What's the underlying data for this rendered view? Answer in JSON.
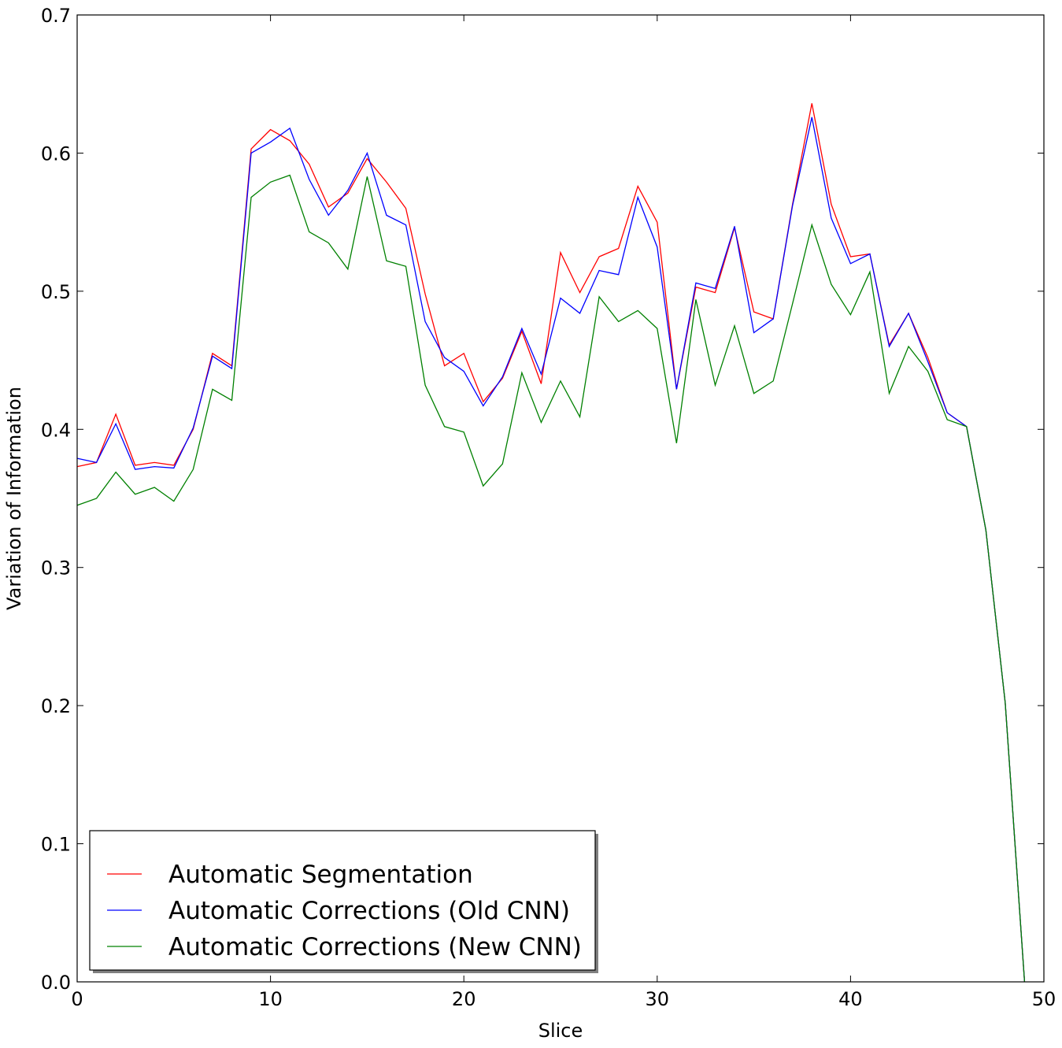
{
  "chart_data": {
    "type": "line",
    "title": "",
    "xlabel": "Slice",
    "ylabel": "Variation of Information",
    "xlim": [
      0,
      50
    ],
    "ylim": [
      0,
      0.7
    ],
    "xticks": [
      0,
      10,
      20,
      30,
      40,
      50
    ],
    "xtick_labels": [
      "0",
      "10",
      "20",
      "30",
      "40",
      "50"
    ],
    "yticks": [
      0,
      0.1,
      0.2,
      0.3,
      0.4,
      0.5,
      0.6,
      0.7
    ],
    "ytick_labels": [
      "0.0",
      "0.1",
      "0.2",
      "0.3",
      "0.4",
      "0.5",
      "0.6",
      "0.7"
    ],
    "grid": false,
    "legend_position": "lower-left",
    "x": [
      0,
      1,
      2,
      3,
      4,
      5,
      6,
      7,
      8,
      9,
      10,
      11,
      12,
      13,
      14,
      15,
      16,
      17,
      18,
      19,
      20,
      21,
      22,
      23,
      24,
      25,
      26,
      27,
      28,
      29,
      30,
      31,
      32,
      33,
      34,
      35,
      36,
      37,
      38,
      39,
      40,
      41,
      42,
      43,
      44,
      45,
      46,
      47,
      48,
      49
    ],
    "series": [
      {
        "name": "Automatic Segmentation",
        "color": "#ff0000",
        "values": [
          0.373,
          0.376,
          0.411,
          0.374,
          0.376,
          0.374,
          0.4,
          0.455,
          0.446,
          0.603,
          0.617,
          0.609,
          0.592,
          0.561,
          0.571,
          0.596,
          0.579,
          0.56,
          0.498,
          0.446,
          0.455,
          0.42,
          0.437,
          0.471,
          0.433,
          0.528,
          0.499,
          0.525,
          0.531,
          0.576,
          0.55,
          0.429,
          0.503,
          0.499,
          0.546,
          0.485,
          0.48,
          0.563,
          0.636,
          0.563,
          0.525,
          0.527,
          0.461,
          0.484,
          0.452,
          0.412,
          0.402,
          0.327,
          0.202,
          0.0
        ]
      },
      {
        "name": "Automatic Corrections (Old CNN)",
        "color": "#0000ff",
        "values": [
          0.379,
          0.376,
          0.404,
          0.371,
          0.373,
          0.372,
          0.401,
          0.453,
          0.444,
          0.6,
          0.608,
          0.618,
          0.581,
          0.555,
          0.573,
          0.6,
          0.555,
          0.548,
          0.478,
          0.452,
          0.442,
          0.417,
          0.438,
          0.473,
          0.44,
          0.495,
          0.484,
          0.515,
          0.512,
          0.568,
          0.532,
          0.429,
          0.506,
          0.502,
          0.547,
          0.47,
          0.48,
          0.562,
          0.626,
          0.553,
          0.52,
          0.527,
          0.46,
          0.484,
          0.449,
          0.412,
          0.402,
          0.327,
          0.202,
          0.0
        ]
      },
      {
        "name": "Automatic Corrections (New CNN)",
        "color": "#008000",
        "values": [
          0.345,
          0.35,
          0.369,
          0.353,
          0.358,
          0.348,
          0.371,
          0.429,
          0.421,
          0.568,
          0.579,
          0.584,
          0.543,
          0.535,
          0.516,
          0.583,
          0.522,
          0.518,
          0.432,
          0.402,
          0.398,
          0.359,
          0.375,
          0.441,
          0.405,
          0.435,
          0.409,
          0.496,
          0.478,
          0.486,
          0.473,
          0.39,
          0.494,
          0.432,
          0.475,
          0.426,
          0.435,
          0.491,
          0.548,
          0.505,
          0.483,
          0.514,
          0.426,
          0.46,
          0.442,
          0.407,
          0.402,
          0.327,
          0.202,
          0.0
        ]
      }
    ]
  }
}
